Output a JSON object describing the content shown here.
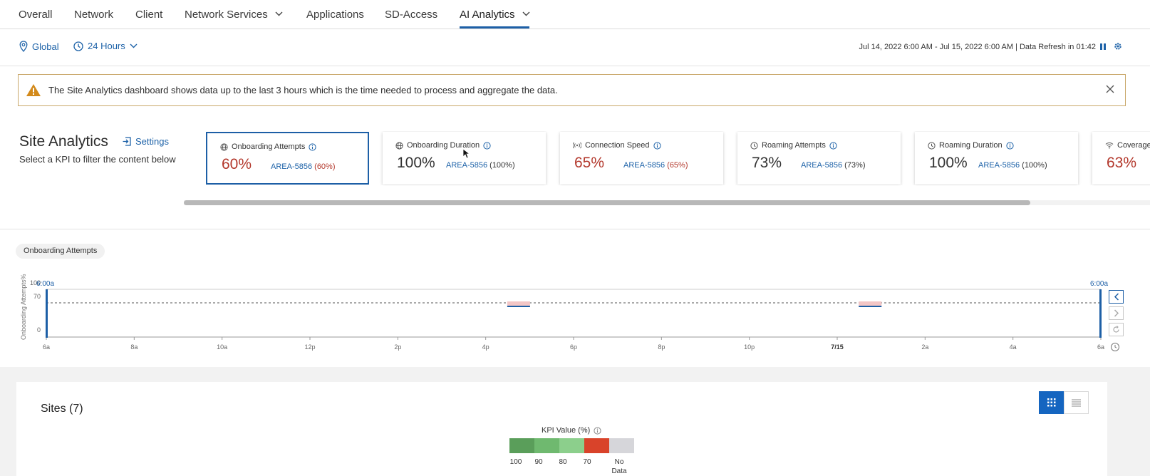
{
  "nav": {
    "tabs": [
      {
        "label": "Overall"
      },
      {
        "label": "Network"
      },
      {
        "label": "Client"
      },
      {
        "label": "Network Services"
      },
      {
        "label": "Applications"
      },
      {
        "label": "SD-Access"
      },
      {
        "label": "AI Analytics"
      }
    ],
    "active_tab": "AI Analytics"
  },
  "filters": {
    "location": "Global",
    "time_range": "24 Hours",
    "date_range": "Jul 14, 2022 6:00 AM - Jul 15, 2022 6:00 AM | Data Refresh in 01:42"
  },
  "banner": {
    "message": "The Site Analytics dashboard shows data up to the last 3 hours which is the time needed to process and aggregate the data."
  },
  "site_analytics": {
    "title": "Site Analytics",
    "settings_label": "Settings",
    "subtitle": "Select a KPI to filter the content below"
  },
  "kpis": [
    {
      "name": "Onboarding Attempts",
      "value": "60%",
      "area": "AREA-5856",
      "area_pct": "(60%)",
      "icon": "globe-icon",
      "status": "red",
      "selected": true
    },
    {
      "name": "Onboarding Duration",
      "value": "100%",
      "area": "AREA-5856",
      "area_pct": "(100%)",
      "icon": "globe-icon",
      "status": "neutral",
      "selected": false
    },
    {
      "name": "Connection Speed",
      "value": "65%",
      "area": "AREA-5856",
      "area_pct": "(65%)",
      "icon": "signal-icon",
      "status": "red",
      "selected": false
    },
    {
      "name": "Roaming Attempts",
      "value": "73%",
      "area": "AREA-5856",
      "area_pct": "(73%)",
      "icon": "clock-icon",
      "status": "neutral",
      "selected": false
    },
    {
      "name": "Roaming Duration",
      "value": "100%",
      "area": "AREA-5856",
      "area_pct": "(100%)",
      "icon": "clock-icon",
      "status": "neutral",
      "selected": false
    },
    {
      "name": "Coverage",
      "value": "63%",
      "icon": "wifi-icon",
      "status": "red",
      "selected": false
    }
  ],
  "timeline": {
    "chip_label": "Onboarding Attempts",
    "y_axis_label": "Onboarding Attempts%",
    "y_ticks": [
      "100",
      "70",
      "0"
    ],
    "threshold": 70,
    "x_ticks": [
      "6a",
      "8a",
      "10a",
      "12p",
      "2p",
      "4p",
      "6p",
      "8p",
      "10p",
      "7/15",
      "2a",
      "4a",
      "6a"
    ],
    "start_marker": "6:00a",
    "end_marker": "6:00a",
    "events_at_hours": [
      10.75,
      18.75
    ]
  },
  "sites": {
    "title": "Sites (7)",
    "legend_title": "KPI Value (%)",
    "legend": [
      {
        "label": "100",
        "color": "#5a9e5a"
      },
      {
        "label": "90",
        "color": "#6fb96f"
      },
      {
        "label": "80",
        "color": "#8ccf8c"
      },
      {
        "label": "70",
        "color": "#d9432a"
      },
      {
        "label": "No Data",
        "color": "#d6d6da"
      }
    ]
  },
  "colors": {
    "accent": "#1d5fa6",
    "alert_red": "#b3382c",
    "warning": "#d38a1b"
  }
}
